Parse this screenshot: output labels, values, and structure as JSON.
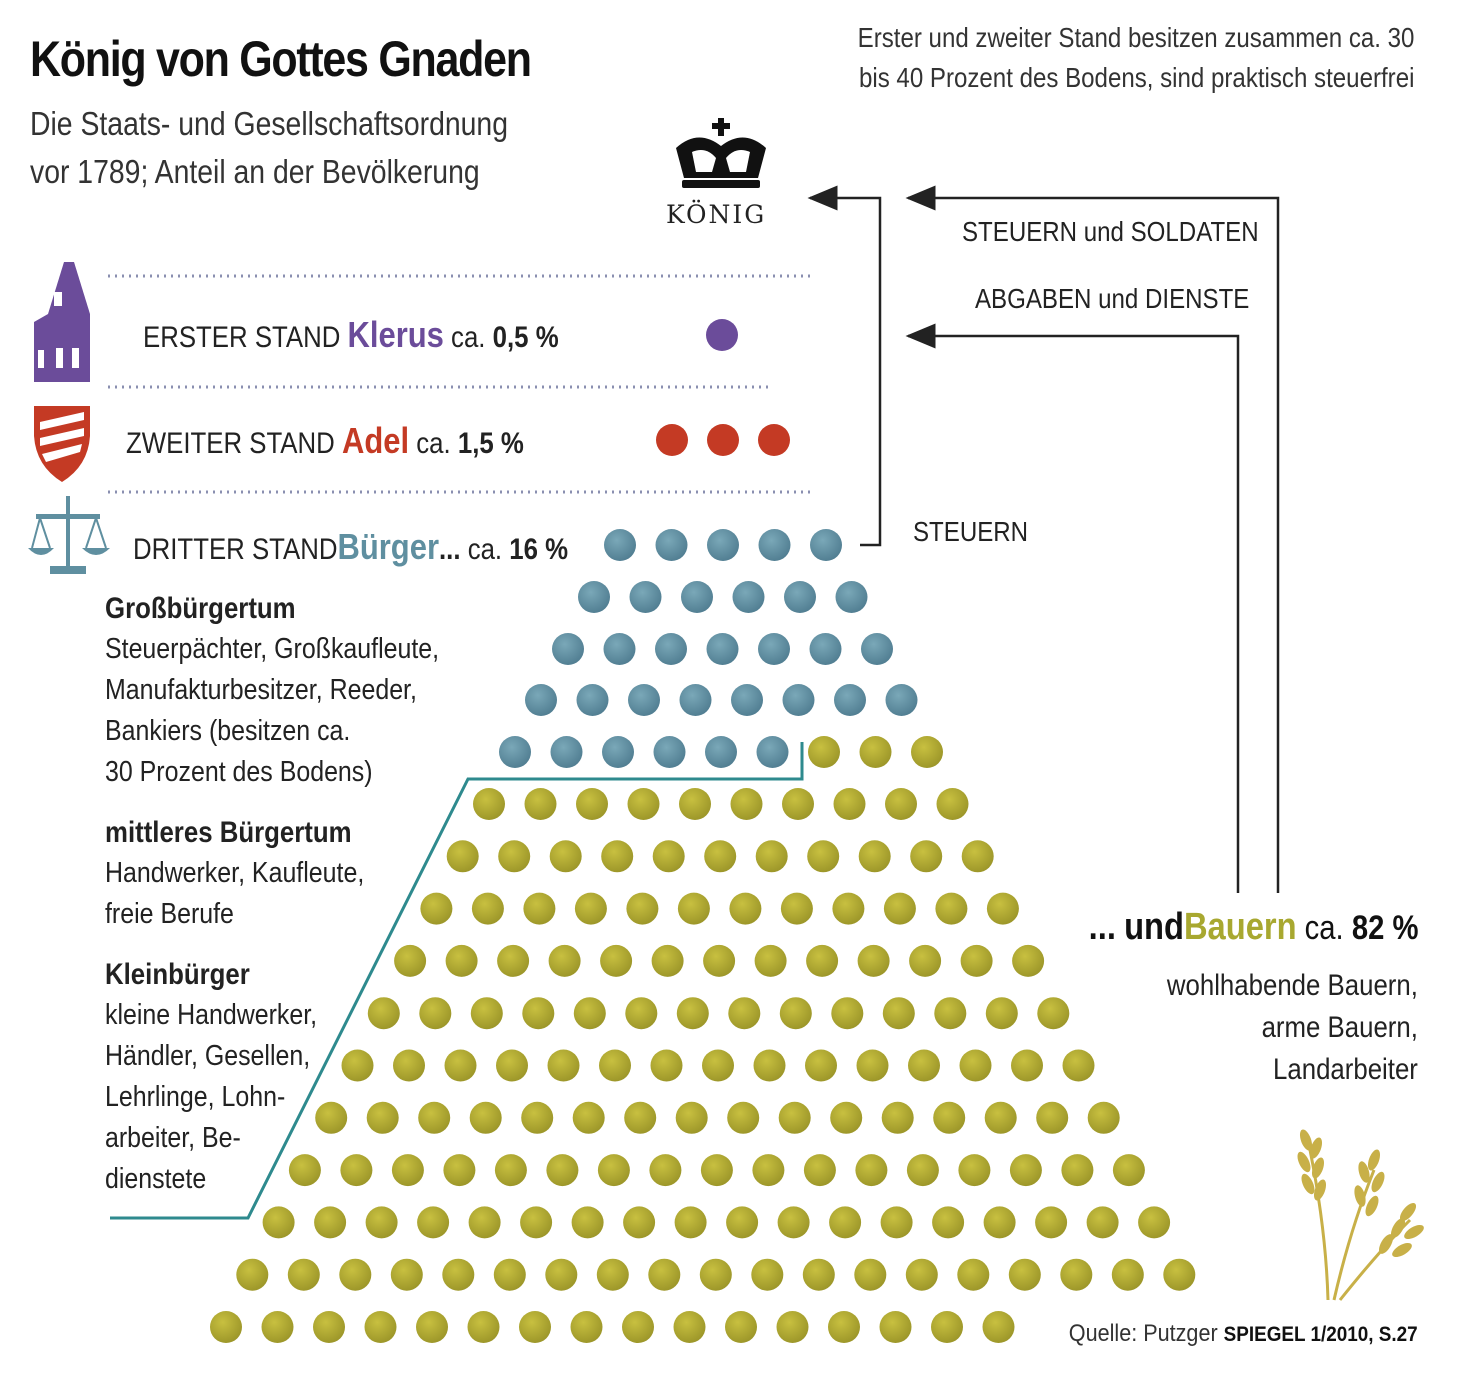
{
  "title": "König von Gottes Gnaden",
  "subtitle": [
    "Die Staats- und Gesellschaftsordnung",
    "vor 1789; Anteil an der Bevölkerung"
  ],
  "top_note": [
    "Erster und zweiter Stand besitzen zusammen ca. 30",
    "bis 40 Prozent des Bodens, sind praktisch steuerfrei"
  ],
  "koenig": {
    "label": "KÖNIG",
    "icon": "crown-icon"
  },
  "flows": {
    "steuern_soldaten": "STEUERN und SOLDATEN",
    "abgaben_dienste": "ABGABEN und DIENSTE",
    "steuern": "STEUERN"
  },
  "estates": {
    "erster": {
      "prefix": "ERSTER STAND",
      "name": "Klerus",
      "ca": "ca.",
      "pct": "0,5 %",
      "icon": "church-icon",
      "color": "#6b4c9a",
      "dots": 1
    },
    "zweiter": {
      "prefix": "ZWEITER STAND",
      "name": "Adel",
      "ca": "ca.",
      "pct": "1,5 %",
      "icon": "shield-icon",
      "color": "#c43a24",
      "dots": 3
    },
    "dritter": {
      "prefix": "DRITTER STAND",
      "name": "Bürger",
      "ellipsis": "...",
      "ca": "ca.",
      "pct": "16 %",
      "icon": "scales-icon",
      "color": "#5f8fa0",
      "dots": 32
    },
    "bauern": {
      "prefix": "...",
      "und": "und",
      "name": "Bauern",
      "ca": "ca.",
      "pct": "82 %",
      "icon": "wheat-icon",
      "color": "#a8a830",
      "dots": 164,
      "sub": [
        "wohlhabende Bauern,",
        "arme Bauern,",
        "Landarbeiter"
      ]
    }
  },
  "sidebar": {
    "gross": {
      "heading": "Großbürgertum",
      "lines": [
        "Steuerpächter, Großkaufleute,",
        "Manufakturbesitzer, Reeder,",
        "Bankiers (besitzen ca.",
        "30 Prozent des Bodens)"
      ]
    },
    "mittel": {
      "heading": "mittleres Bürgertum",
      "lines": [
        "Handwerker, Kaufleute,",
        "freie Berufe"
      ]
    },
    "klein": {
      "heading": "Kleinbürger",
      "lines": [
        "kleine Handwerker,",
        "Händler, Gesellen,",
        "Lehrlinge, Lohn-",
        "arbeiter, Be-",
        "dienstete"
      ]
    }
  },
  "source": {
    "text": "Quelle: Putzger",
    "spiegel": "SPIEGEL 1/2010, S.27"
  },
  "colors": {
    "klerus": "#6b4c9a",
    "adel": "#c43a24",
    "buerger": "#5f8fa0",
    "bauern": "#a8a830",
    "line": "#2e8a8e"
  }
}
